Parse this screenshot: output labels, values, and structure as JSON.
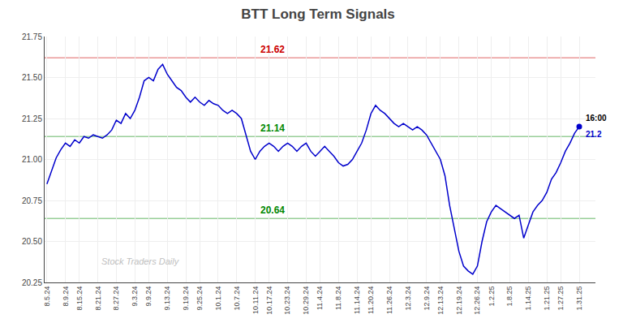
{
  "chart_data": {
    "type": "line",
    "title": "BTT Long Term Signals",
    "color": "#0000cc",
    "grid": true,
    "marker": "last",
    "categories": [
      "8.5.24",
      null,
      null,
      null,
      "8.9.24",
      null,
      null,
      "8.15.24",
      null,
      null,
      null,
      "8.21.24",
      null,
      null,
      null,
      "8.27.24",
      null,
      null,
      null,
      "9.3.24",
      null,
      null,
      "9.9.24",
      null,
      null,
      null,
      "9.13.24",
      null,
      null,
      null,
      "9.19.24",
      null,
      null,
      "9.25.24",
      null,
      null,
      null,
      "10.1.24",
      null,
      null,
      null,
      "10.7.24",
      null,
      null,
      null,
      "10.11.24",
      null,
      null,
      "10.17.24",
      null,
      null,
      null,
      "10.23.24",
      null,
      null,
      null,
      "10.29.24",
      null,
      null,
      "11.4.24",
      null,
      null,
      null,
      "11.8.24",
      null,
      null,
      null,
      "11.14.24",
      null,
      null,
      "11.20.24",
      null,
      null,
      null,
      "11.26.24",
      null,
      null,
      null,
      "12.3.24",
      null,
      null,
      null,
      "12.9.24",
      null,
      null,
      "12.13.24",
      null,
      null,
      null,
      "12.19.24",
      null,
      null,
      null,
      "12.26.24",
      null,
      null,
      "1.2.25",
      null,
      null,
      null,
      "1.8.25",
      null,
      null,
      null,
      "1.14.25",
      null,
      null,
      null,
      "1.21.25",
      null,
      null,
      "1.27.25",
      null,
      null,
      null,
      "1.31.25"
    ],
    "values": [
      20.85,
      20.93,
      21.01,
      21.06,
      21.1,
      21.08,
      21.12,
      21.1,
      21.14,
      21.13,
      21.15,
      21.14,
      21.13,
      21.15,
      21.18,
      21.24,
      21.22,
      21.28,
      21.25,
      21.3,
      21.38,
      21.48,
      21.5,
      21.48,
      21.55,
      21.58,
      21.52,
      21.48,
      21.44,
      21.42,
      21.38,
      21.35,
      21.38,
      21.35,
      21.33,
      21.36,
      21.34,
      21.33,
      21.3,
      21.28,
      21.3,
      21.28,
      21.25,
      21.15,
      21.05,
      21.0,
      21.05,
      21.08,
      21.1,
      21.08,
      21.05,
      21.08,
      21.1,
      21.08,
      21.05,
      21.08,
      21.1,
      21.05,
      21.02,
      21.05,
      21.08,
      21.05,
      21.02,
      20.98,
      20.96,
      20.97,
      21.0,
      21.05,
      21.1,
      21.18,
      21.28,
      21.33,
      21.3,
      21.28,
      21.25,
      21.22,
      21.2,
      21.22,
      21.2,
      21.18,
      21.2,
      21.18,
      21.15,
      21.1,
      21.05,
      21.0,
      20.9,
      20.72,
      20.58,
      20.44,
      20.35,
      20.32,
      20.3,
      20.35,
      20.5,
      20.62,
      20.68,
      20.72,
      20.7,
      20.68,
      20.66,
      20.64,
      20.66,
      20.52,
      20.6,
      20.68,
      20.72,
      20.75,
      20.8,
      20.88,
      20.92,
      20.98,
      21.05,
      21.1,
      21.16,
      21.2
    ],
    "reference_lines": [
      {
        "value": 21.62,
        "label": "21.62",
        "color": "#cc0000"
      },
      {
        "value": 21.14,
        "label": "21.14",
        "color": "#008800"
      },
      {
        "value": 20.64,
        "label": "20.64",
        "color": "#008800"
      }
    ],
    "last_time_label": "16:00",
    "last_price_label": "21.2",
    "watermark": "Stock Traders Daily",
    "ylim": [
      20.25,
      21.75
    ],
    "yticks": [
      20.25,
      {
        "value": 20.5,
        "label": "20.50"
      },
      20.75,
      {
        "value": 21.0,
        "label": "21.00"
      },
      21.25,
      {
        "value": 21.5,
        "label": "21.50"
      },
      21.75
    ]
  }
}
